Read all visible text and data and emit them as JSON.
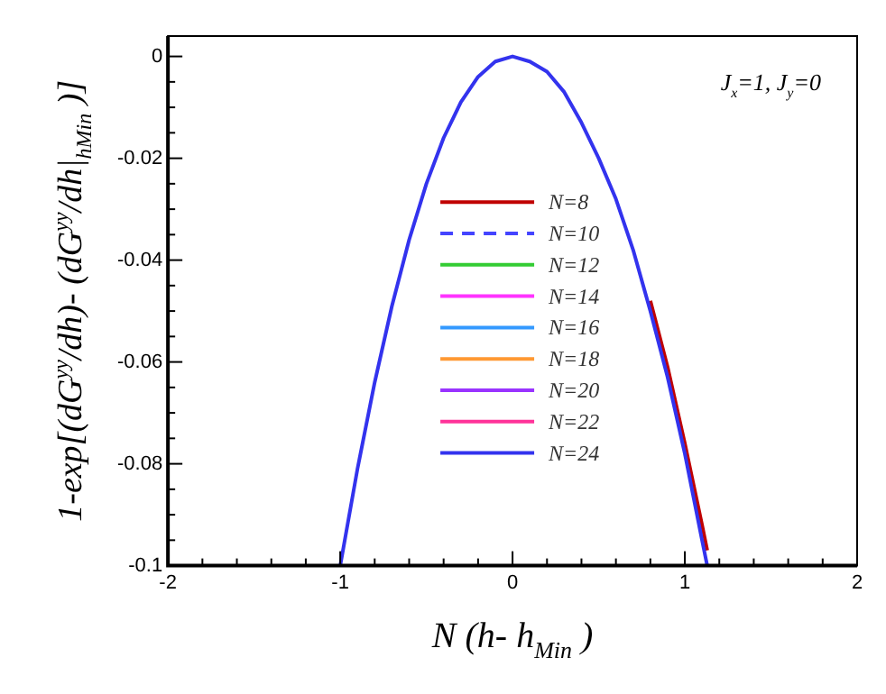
{
  "chart_data": {
    "type": "line",
    "xlabel": "N (h- h$_{Min}$ )",
    "ylabel": "1-exp[(dG$^{yy}$/dh)- (dG$^{yy}$/dh|$_{hMin}$ )]",
    "annotations": [
      "J$_{x}$=1, J$_{y}$=0"
    ],
    "x": [
      -1,
      -0.9,
      -0.8,
      -0.7,
      -0.6,
      -0.5,
      -0.4,
      -0.3,
      -0.2,
      -0.1,
      0,
      0.1,
      0.2,
      0.3,
      0.4,
      0.5,
      0.6,
      0.7,
      0.8,
      0.9,
      1,
      1.1,
      1.13
    ],
    "series": [
      {
        "name": "N=8",
        "color": "#c00000",
        "values": [
          null,
          null,
          null,
          null,
          null,
          null,
          null,
          null,
          null,
          null,
          null,
          null,
          null,
          null,
          null,
          null,
          null,
          null,
          -0.048,
          -0.061,
          -0.076,
          -0.092,
          -0.097
        ]
      },
      {
        "name": "N=10",
        "color": "#4444ff",
        "line_style": "dashed",
        "values": [
          null,
          null,
          null,
          null,
          null,
          null,
          null,
          null,
          null,
          null,
          null,
          null,
          null,
          null,
          null,
          null,
          null,
          null,
          null,
          null,
          null,
          null,
          null
        ]
      },
      {
        "name": "N=12",
        "color": "#33cc33",
        "values": [
          null,
          null,
          null,
          null,
          null,
          null,
          null,
          null,
          null,
          null,
          null,
          null,
          null,
          null,
          null,
          null,
          null,
          null,
          null,
          null,
          null,
          null,
          null
        ]
      },
      {
        "name": "N=14",
        "color": "#ff33ff",
        "values": [
          null,
          null,
          null,
          null,
          null,
          null,
          null,
          null,
          null,
          null,
          null,
          null,
          null,
          null,
          null,
          null,
          null,
          null,
          null,
          null,
          null,
          null,
          null
        ]
      },
      {
        "name": "N=16",
        "color": "#3399ff",
        "values": [
          null,
          null,
          null,
          null,
          null,
          null,
          null,
          null,
          null,
          null,
          null,
          null,
          null,
          null,
          null,
          null,
          null,
          null,
          null,
          null,
          null,
          null,
          null
        ]
      },
      {
        "name": "N=18",
        "color": "#ff9933",
        "values": [
          null,
          null,
          null,
          null,
          null,
          null,
          null,
          null,
          null,
          null,
          null,
          null,
          null,
          null,
          null,
          null,
          null,
          null,
          null,
          null,
          null,
          null,
          null
        ]
      },
      {
        "name": "N=20",
        "color": "#9933ff",
        "values": [
          null,
          null,
          null,
          null,
          null,
          null,
          null,
          null,
          null,
          null,
          null,
          null,
          null,
          null,
          null,
          null,
          null,
          null,
          null,
          null,
          null,
          null,
          null
        ]
      },
      {
        "name": "N=22",
        "color": "#ff3399",
        "values": [
          null,
          null,
          null,
          null,
          null,
          null,
          null,
          null,
          null,
          null,
          null,
          null,
          null,
          null,
          null,
          null,
          null,
          null,
          null,
          null,
          null,
          null,
          null
        ]
      },
      {
        "name": "N=24",
        "color": "#3333ee",
        "values": [
          -0.1,
          -0.081,
          -0.064,
          -0.049,
          -0.036,
          -0.025,
          -0.016,
          -0.009,
          -0.004,
          -0.001,
          0,
          -0.001,
          -0.003,
          -0.007,
          -0.013,
          -0.02,
          -0.028,
          -0.038,
          -0.05,
          -0.063,
          -0.078,
          -0.095,
          -0.1
        ]
      }
    ],
    "xlim": [
      -2,
      2
    ],
    "xticks": [
      -2,
      {
        "value": -1.8,
        "label": null
      },
      {
        "value": -1.6,
        "label": null
      },
      {
        "value": -1.4,
        "label": null
      },
      {
        "value": -1.2,
        "label": null
      },
      -1,
      {
        "value": -0.8,
        "label": null
      },
      {
        "value": -0.6,
        "label": null
      },
      {
        "value": -0.4,
        "label": null
      },
      {
        "value": -0.2,
        "label": null
      },
      0,
      {
        "value": 0.2,
        "label": null
      },
      {
        "value": 0.4,
        "label": null
      },
      {
        "value": 0.6,
        "label": null
      },
      {
        "value": 0.8,
        "label": null
      },
      1,
      {
        "value": 1.2,
        "label": null
      },
      {
        "value": 1.4,
        "label": null
      },
      {
        "value": 1.6,
        "label": null
      },
      {
        "value": 1.8,
        "label": null
      },
      2
    ],
    "ylim": [
      -0.1,
      0.004
    ],
    "yticks": [
      -0.1,
      {
        "value": -0.095,
        "label": null
      },
      {
        "value": -0.09,
        "label": null
      },
      {
        "value": -0.085,
        "label": null
      },
      -0.08,
      {
        "value": -0.075,
        "label": null
      },
      {
        "value": -0.07,
        "label": null
      },
      {
        "value": -0.065,
        "label": null
      },
      -0.06,
      {
        "value": -0.055,
        "label": null
      },
      {
        "value": -0.05,
        "label": null
      },
      {
        "value": -0.045,
        "label": null
      },
      -0.04,
      {
        "value": -0.035,
        "label": null
      },
      {
        "value": -0.03,
        "label": null
      },
      {
        "value": -0.025,
        "label": null
      },
      -0.02,
      {
        "value": -0.015,
        "label": null
      },
      {
        "value": -0.01,
        "label": null
      },
      {
        "value": -0.005,
        "label": null
      },
      0
    ],
    "line_style": "solid",
    "legend": "center"
  }
}
